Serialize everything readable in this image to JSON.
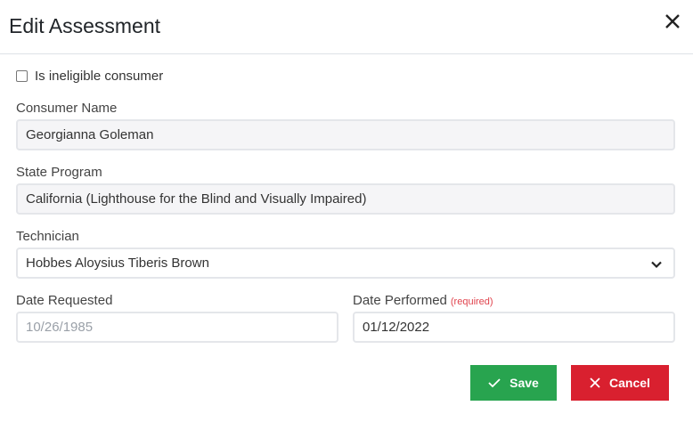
{
  "header": {
    "title": "Edit Assessment",
    "close_icon": "close-icon"
  },
  "form": {
    "ineligible": {
      "label": "Is ineligible consumer",
      "checked": false
    },
    "consumer_name": {
      "label": "Consumer Name",
      "value": "Georgianna Goleman"
    },
    "state_program": {
      "label": "State Program",
      "value": "California (Lighthouse for the Blind and Visually Impaired)"
    },
    "technician": {
      "label": "Technician",
      "value": "Hobbes Aloysius Tiberis Brown"
    },
    "date_requested": {
      "label": "Date Requested",
      "placeholder": "10/26/1985"
    },
    "date_performed": {
      "label": "Date Performed",
      "required": "(required)",
      "value": "01/12/2022"
    }
  },
  "buttons": {
    "save": "Save",
    "cancel": "Cancel"
  },
  "colors": {
    "save": "#28a44f",
    "cancel": "#d9202f",
    "required": "#e0434d"
  }
}
